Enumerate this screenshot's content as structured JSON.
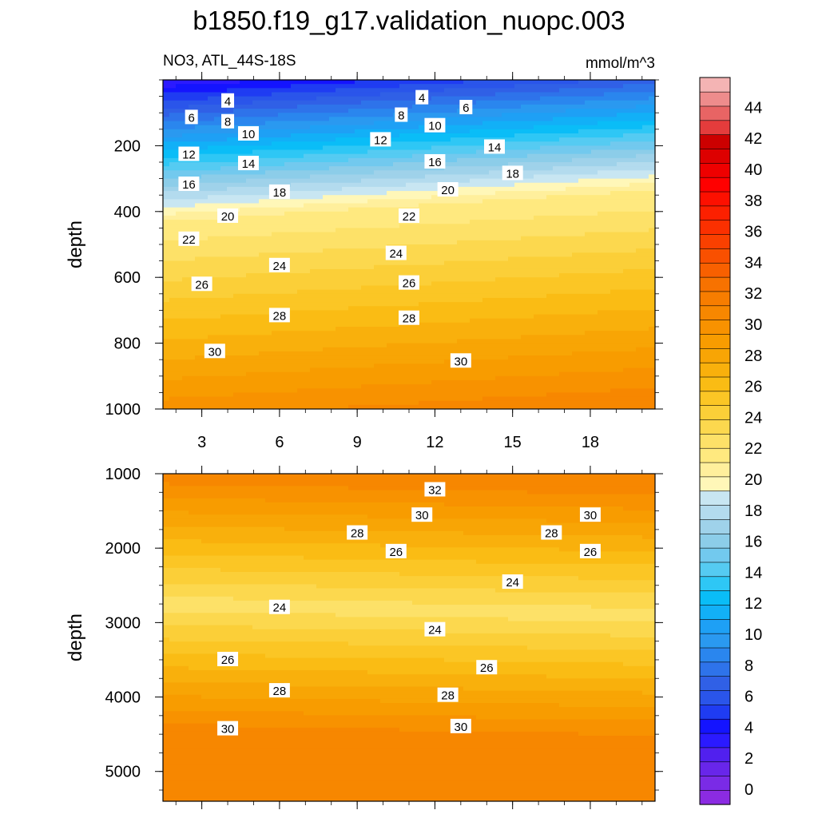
{
  "title": "b1850.f19_g17.validation_nuopc.003",
  "subtitle_left": "NO3, ATL_44S-18S",
  "subtitle_right": "mmol/m^3",
  "chart_data": [
    {
      "type": "contour",
      "panel": "upper",
      "ylabel": "depth",
      "ylim": [
        0,
        1000
      ],
      "y_reversed": true,
      "y_ticks": [
        "200",
        "400",
        "600",
        "800",
        "1000"
      ],
      "xlim": [
        1.5,
        20.5
      ],
      "x_ticks": [
        "3",
        "6",
        "9",
        "12",
        "15",
        "18"
      ],
      "contour_interval": 1,
      "contour_labels": [
        {
          "value": "4",
          "x": 4.0,
          "y": 65
        },
        {
          "value": "4",
          "x": 11.5,
          "y": 55
        },
        {
          "value": "6",
          "x": 2.6,
          "y": 115
        },
        {
          "value": "6",
          "x": 13.2,
          "y": 85
        },
        {
          "value": "8",
          "x": 4.0,
          "y": 128
        },
        {
          "value": "8",
          "x": 10.7,
          "y": 108
        },
        {
          "value": "10",
          "x": 4.8,
          "y": 165
        },
        {
          "value": "10",
          "x": 12.0,
          "y": 140
        },
        {
          "value": "12",
          "x": 2.5,
          "y": 227
        },
        {
          "value": "12",
          "x": 9.9,
          "y": 183
        },
        {
          "value": "14",
          "x": 4.8,
          "y": 255
        },
        {
          "value": "14",
          "x": 14.3,
          "y": 205
        },
        {
          "value": "16",
          "x": 2.5,
          "y": 318
        },
        {
          "value": "16",
          "x": 12.0,
          "y": 250
        },
        {
          "value": "18",
          "x": 6.0,
          "y": 342
        },
        {
          "value": "18",
          "x": 15.0,
          "y": 285
        },
        {
          "value": "20",
          "x": 4.0,
          "y": 415
        },
        {
          "value": "20",
          "x": 12.5,
          "y": 335
        },
        {
          "value": "22",
          "x": 2.5,
          "y": 485
        },
        {
          "value": "22",
          "x": 11.0,
          "y": 415
        },
        {
          "value": "24",
          "x": 6.0,
          "y": 565
        },
        {
          "value": "24",
          "x": 10.5,
          "y": 528
        },
        {
          "value": "26",
          "x": 3.0,
          "y": 622
        },
        {
          "value": "26",
          "x": 11.0,
          "y": 618
        },
        {
          "value": "28",
          "x": 6.0,
          "y": 717
        },
        {
          "value": "28",
          "x": 11.0,
          "y": 725
        },
        {
          "value": "30",
          "x": 3.5,
          "y": 826
        },
        {
          "value": "30",
          "x": 13.0,
          "y": 855
        }
      ]
    },
    {
      "type": "contour",
      "panel": "lower",
      "ylabel": "depth",
      "ylim": [
        1000,
        5400
      ],
      "y_reversed": true,
      "y_ticks": [
        "1000",
        "2000",
        "3000",
        "4000",
        "5000"
      ],
      "xlim": [
        1.5,
        20.5
      ],
      "x_ticks": [
        "3",
        "6",
        "9",
        "12",
        "15",
        "18"
      ],
      "contour_interval": 1,
      "contour_labels": [
        {
          "value": "32",
          "x": 12.0,
          "y": 1220
        },
        {
          "value": "30",
          "x": 11.5,
          "y": 1560
        },
        {
          "value": "30",
          "x": 18.0,
          "y": 1560
        },
        {
          "value": "28",
          "x": 9.0,
          "y": 1800
        },
        {
          "value": "28",
          "x": 16.5,
          "y": 1800
        },
        {
          "value": "26",
          "x": 10.5,
          "y": 2050
        },
        {
          "value": "26",
          "x": 18.0,
          "y": 2050
        },
        {
          "value": "24",
          "x": 15.0,
          "y": 2460
        },
        {
          "value": "24",
          "x": 6.0,
          "y": 2800
        },
        {
          "value": "24",
          "x": 12.0,
          "y": 3100
        },
        {
          "value": "26",
          "x": 4.0,
          "y": 3500
        },
        {
          "value": "26",
          "x": 14.0,
          "y": 3610
        },
        {
          "value": "28",
          "x": 6.0,
          "y": 3920
        },
        {
          "value": "28",
          "x": 12.5,
          "y": 3980
        },
        {
          "value": "30",
          "x": 4.0,
          "y": 4430
        },
        {
          "value": "30",
          "x": 13.0,
          "y": 4400
        }
      ]
    }
  ],
  "colorbar": {
    "label_values": [
      "0",
      "2",
      "4",
      "6",
      "8",
      "10",
      "12",
      "14",
      "16",
      "18",
      "20",
      "22",
      "24",
      "26",
      "28",
      "30",
      "32",
      "34",
      "36",
      "38",
      "40",
      "42",
      "44"
    ],
    "colors": [
      "#8b2be2",
      "#7a2be6",
      "#6826ea",
      "#5120ee",
      "#2b1aff",
      "#1414ff",
      "#1f3cf2",
      "#2a55ea",
      "#3060e6",
      "#2e73ea",
      "#2a86ee",
      "#2a99f0",
      "#1ea0f5",
      "#12b0f7",
      "#0abdf7",
      "#2ec7f5",
      "#55cbf2",
      "#72c9ee",
      "#8ccde9",
      "#9fd2ea",
      "#b3dbee",
      "#c8e6f2",
      "#fff7b8",
      "#ffef9c",
      "#ffe97f",
      "#fde168",
      "#fcd84e",
      "#fbcf38",
      "#fbc625",
      "#fabc14",
      "#f9b00c",
      "#f8a505",
      "#f89c00",
      "#f89200",
      "#f78700",
      "#f77d00",
      "#f77200",
      "#f86000",
      "#f95000",
      "#fa4000",
      "#fb3000",
      "#fc2000",
      "#fd1000",
      "#ff0000",
      "#ee0000",
      "#dd0000",
      "#cc0000",
      "#e43c3c",
      "#e86464",
      "#ee8c8c",
      "#f4b4b4"
    ]
  }
}
